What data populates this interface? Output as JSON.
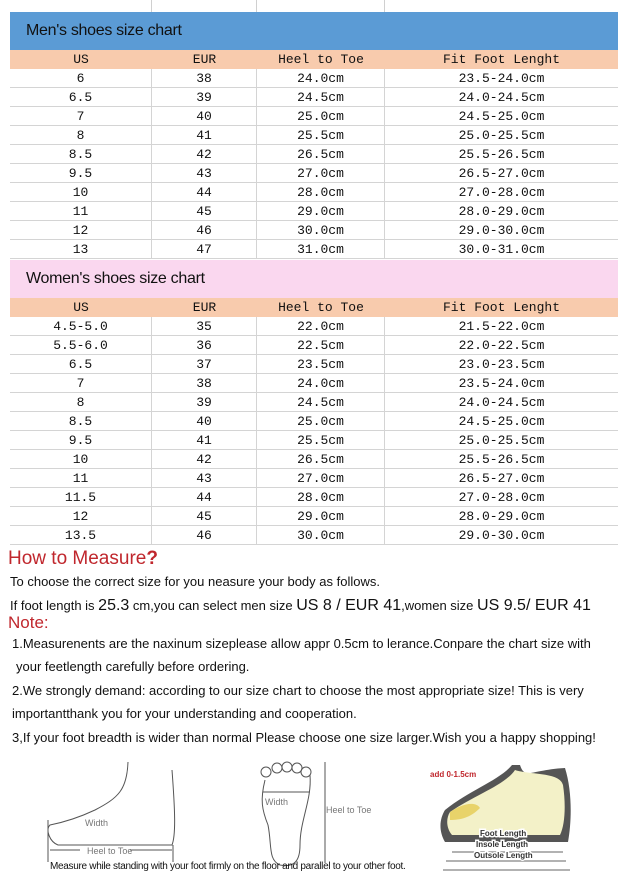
{
  "men": {
    "title": "Men's shoes size chart",
    "color": "#5b9bd5",
    "headers": [
      "US",
      "EUR",
      "Heel to Toe",
      "Fit Foot Lenght"
    ],
    "rows": [
      [
        "6",
        "38",
        "24.0cm",
        "23.5-24.0cm"
      ],
      [
        "6.5",
        "39",
        "24.5cm",
        "24.0-24.5cm"
      ],
      [
        "7",
        "40",
        "25.0cm",
        "24.5-25.0cm"
      ],
      [
        "8",
        "41",
        "25.5cm",
        "25.0-25.5cm"
      ],
      [
        "8.5",
        "42",
        "26.5cm",
        "25.5-26.5cm"
      ],
      [
        "9.5",
        "43",
        "27.0cm",
        "26.5-27.0cm"
      ],
      [
        "10",
        "44",
        "28.0cm",
        "27.0-28.0cm"
      ],
      [
        "11",
        "45",
        "29.0cm",
        "28.0-29.0cm"
      ],
      [
        "12",
        "46",
        "30.0cm",
        "29.0-30.0cm"
      ],
      [
        "13",
        "47",
        "31.0cm",
        "30.0-31.0cm"
      ]
    ]
  },
  "women": {
    "title": "Women's  shoes size chart",
    "color": "#fad7ef",
    "headers": [
      "US",
      "EUR",
      "Heel to Toe",
      "Fit Foot Lenght"
    ],
    "rows": [
      [
        "4.5-5.0",
        "35",
        "22.0cm",
        "21.5-22.0cm"
      ],
      [
        "5.5-6.0",
        "36",
        "22.5cm",
        "22.0-22.5cm"
      ],
      [
        "6.5",
        "37",
        "23.5cm",
        "23.0-23.5cm"
      ],
      [
        "7",
        "38",
        "24.0cm",
        "23.5-24.0cm"
      ],
      [
        "8",
        "39",
        "24.5cm",
        "24.0-24.5cm"
      ],
      [
        "8.5",
        "40",
        "25.0cm",
        "24.5-25.0cm"
      ],
      [
        "9.5",
        "41",
        "25.5cm",
        "25.0-25.5cm"
      ],
      [
        "10",
        "42",
        "26.5cm",
        "25.5-26.5cm"
      ],
      [
        "11",
        "43",
        "27.0cm",
        "26.5-27.0cm"
      ],
      [
        "11.5",
        "44",
        "28.0cm",
        "27.0-28.0cm"
      ],
      [
        "12",
        "45",
        "29.0cm",
        "28.0-29.0cm"
      ],
      [
        "13.5",
        "46",
        "30.0cm",
        "29.0-30.0cm"
      ]
    ]
  },
  "header_color": "#f8cbad",
  "measure": {
    "title": "How to Measure",
    "qmark": "?",
    "intro": "To choose the correct size for you neasure your body as follows.",
    "example": {
      "a": "If foot length is ",
      "b": "25.3",
      "c": " cm,you can select men size ",
      "d": "US 8 / EUR 41",
      "e": ",women size ",
      "f": "US 9.5/ EUR 41"
    }
  },
  "note": {
    "title": "Note:",
    "lines": [
      "1.Measurenents are the naxinum sizeplease allow appr 0.5cm to lerance.Conpare the chart size with",
      "your feetlength carefully before ordering.",
      "2.We strongly demand: according to our size chart to choose the most appropriate size! This is very",
      "importantthank you for your understanding and cooperation.",
      "3,If your foot breadth is wider than normal Please choose one size larger.Wish you a happy shopping!"
    ]
  },
  "diagram": {
    "side_width": "Width",
    "side_length": "Heel to Toe",
    "sole_width": "Width",
    "sole_length": "Heel to Toe",
    "add": "add 0-1.5cm",
    "foot_length": "Foot Length",
    "insole_length": "Insole Length",
    "outsole_length": "Outsole Length",
    "caption": "Measure while standing with your foot firmly on the floor and parallel to your other foot."
  }
}
